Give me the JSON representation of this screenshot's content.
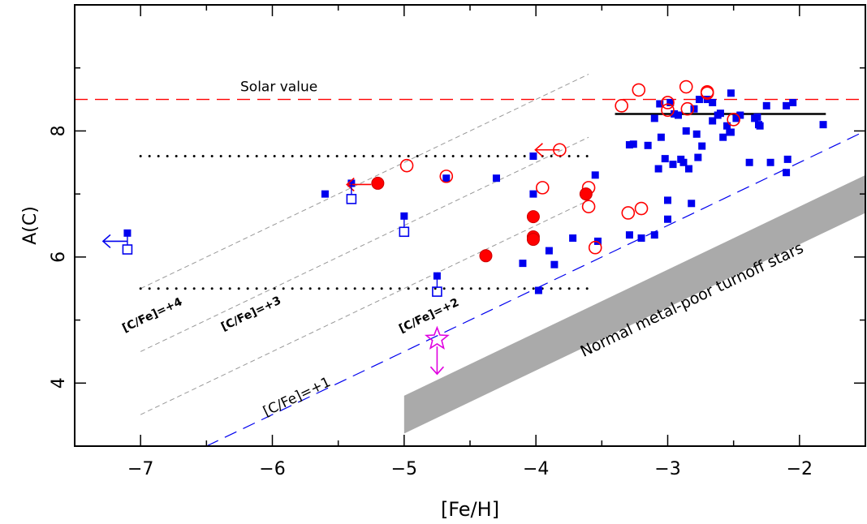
{
  "chart_data": {
    "type": "scatter",
    "title": "",
    "xlabel": "[Fe/H]",
    "ylabel": "A(C)",
    "xlim": [
      -7.5,
      -1.5
    ],
    "ylim": [
      3.0,
      10.0
    ],
    "xticks": [
      -7,
      -6,
      -5,
      -4,
      -3,
      -2
    ],
    "xtick_labels": [
      "−7",
      "−6",
      "−5",
      "−4",
      "−3",
      "−2"
    ],
    "yticks": [
      4,
      6,
      8
    ],
    "ytick_labels": [
      "4",
      "6",
      "8"
    ],
    "grid": false,
    "colors": {
      "blue": "#0000ee",
      "red": "#ff0000",
      "magenta": "#e000e0",
      "band": "#aaaaaa"
    },
    "solar_value": {
      "label": "Solar value",
      "y": 8.5
    },
    "reference_lines": [
      {
        "label": "[C/Fe]=+4",
        "x": [
          -7.0,
          -3.6
        ],
        "y": [
          5.5,
          8.9
        ]
      },
      {
        "label": "[C/Fe]=+3",
        "x": [
          -7.0,
          -3.6
        ],
        "y": [
          4.5,
          7.9
        ]
      },
      {
        "label": "[C/Fe]=+2",
        "x": [
          -7.0,
          -3.6
        ],
        "y": [
          3.5,
          6.9
        ]
      },
      {
        "label": "[C/Fe]=+1",
        "x": [
          -6.5,
          -1.5
        ],
        "y": [
          3.0,
          8.0
        ]
      }
    ],
    "plateau_lines": [
      {
        "x": [
          -7.0,
          -3.6
        ],
        "y": 7.6
      },
      {
        "x": [
          -7.0,
          -3.6
        ],
        "y": 5.5
      }
    ],
    "mean_line": {
      "x": [
        -3.4,
        -1.8
      ],
      "y": 8.27
    },
    "turnoff_band": {
      "label": "Normal metal-poor turnoff stars",
      "x": [
        -5.0,
        -1.5
      ],
      "lower": [
        3.2,
        6.7
      ],
      "upper": [
        3.8,
        7.3
      ]
    },
    "series": [
      {
        "marker": "filled-square",
        "points": [
          [
            -7.1,
            6.38
          ],
          [
            -5.6,
            7.0
          ],
          [
            -5.4,
            7.17
          ],
          [
            -5.0,
            6.65
          ],
          [
            -4.75,
            5.7
          ],
          [
            -4.68,
            7.25
          ],
          [
            -4.3,
            7.25
          ],
          [
            -4.1,
            5.9
          ],
          [
            -4.02,
            7.6
          ],
          [
            -4.02,
            7.0
          ],
          [
            -3.98,
            5.47
          ],
          [
            -3.9,
            6.1
          ],
          [
            -3.86,
            5.88
          ],
          [
            -3.72,
            6.3
          ],
          [
            -3.55,
            7.3
          ],
          [
            -3.53,
            6.25
          ],
          [
            -3.29,
            7.78
          ],
          [
            -3.26,
            7.79
          ],
          [
            -3.29,
            6.35
          ],
          [
            -3.2,
            6.3
          ],
          [
            -3.15,
            7.77
          ],
          [
            -3.1,
            8.2
          ],
          [
            -3.1,
            6.35
          ],
          [
            -3.06,
            8.43
          ],
          [
            -3.05,
            7.9
          ],
          [
            -3.02,
            7.56
          ],
          [
            -3.0,
            6.9
          ],
          [
            -3.0,
            6.6
          ],
          [
            -3.07,
            7.4
          ],
          [
            -2.98,
            8.45
          ],
          [
            -2.95,
            8.27
          ],
          [
            -2.96,
            7.47
          ],
          [
            -2.92,
            8.25
          ],
          [
            -2.9,
            7.55
          ],
          [
            -2.88,
            7.5
          ],
          [
            -2.86,
            8.0
          ],
          [
            -2.84,
            7.4
          ],
          [
            -2.82,
            6.85
          ],
          [
            -2.8,
            8.35
          ],
          [
            -2.78,
            7.95
          ],
          [
            -2.76,
            8.5
          ],
          [
            -2.77,
            7.58
          ],
          [
            -2.74,
            7.76
          ],
          [
            -2.7,
            8.5
          ],
          [
            -2.66,
            8.45
          ],
          [
            -2.66,
            8.16
          ],
          [
            -2.62,
            8.25
          ],
          [
            -2.6,
            8.28
          ],
          [
            -2.58,
            7.9
          ],
          [
            -2.55,
            8.08
          ],
          [
            -2.52,
            8.6
          ],
          [
            -2.53,
            7.98
          ],
          [
            -2.52,
            7.98
          ],
          [
            -2.48,
            8.2
          ],
          [
            -2.45,
            8.25
          ],
          [
            -2.38,
            7.5
          ],
          [
            -2.34,
            8.2
          ],
          [
            -2.32,
            8.22
          ],
          [
            -2.31,
            8.1
          ],
          [
            -2.3,
            8.08
          ],
          [
            -2.25,
            8.4
          ],
          [
            -2.22,
            7.5
          ],
          [
            -2.1,
            8.4
          ],
          [
            -2.09,
            7.55
          ],
          [
            -2.1,
            7.34
          ],
          [
            -2.05,
            8.45
          ],
          [
            -1.82,
            8.1
          ]
        ]
      },
      {
        "marker": "open-square",
        "points": [
          [
            -7.1,
            6.12
          ],
          [
            -5.4,
            6.92
          ],
          [
            -5.0,
            6.4
          ],
          [
            -4.75,
            5.45
          ]
        ]
      },
      {
        "marker": "open-circle",
        "points": [
          [
            -3.82,
            7.7
          ],
          [
            -4.98,
            7.45
          ],
          [
            -4.68,
            7.28
          ],
          [
            -3.95,
            7.1
          ],
          [
            -3.6,
            7.1
          ],
          [
            -3.6,
            6.8
          ],
          [
            -3.55,
            6.15
          ],
          [
            -3.3,
            6.7
          ],
          [
            -3.2,
            6.77
          ],
          [
            -3.35,
            8.4
          ],
          [
            -3.22,
            8.65
          ],
          [
            -3.0,
            8.45
          ],
          [
            -3.0,
            8.33
          ],
          [
            -2.86,
            8.7
          ],
          [
            -2.85,
            8.35
          ],
          [
            -2.7,
            8.62
          ],
          [
            -2.7,
            8.6
          ],
          [
            -2.5,
            8.18
          ]
        ]
      },
      {
        "marker": "filled-circle",
        "points": [
          [
            -5.2,
            7.17
          ],
          [
            -4.38,
            6.02
          ],
          [
            -4.02,
            6.64
          ],
          [
            -4.02,
            6.32
          ],
          [
            -4.02,
            6.28
          ],
          [
            -3.62,
            7.0
          ]
        ]
      },
      {
        "marker": "open-star",
        "points": [
          [
            -4.75,
            4.7
          ]
        ]
      }
    ],
    "limits": [
      {
        "x": -7.1,
        "y": 6.25,
        "direction": "left",
        "color": "blue"
      },
      {
        "x": -5.25,
        "y": 7.15,
        "direction": "left",
        "color": "red"
      },
      {
        "x": -3.82,
        "y": 7.7,
        "direction": "left",
        "color": "red"
      },
      {
        "x": -4.75,
        "y": 4.58,
        "direction": "down",
        "color": "magenta"
      }
    ]
  }
}
